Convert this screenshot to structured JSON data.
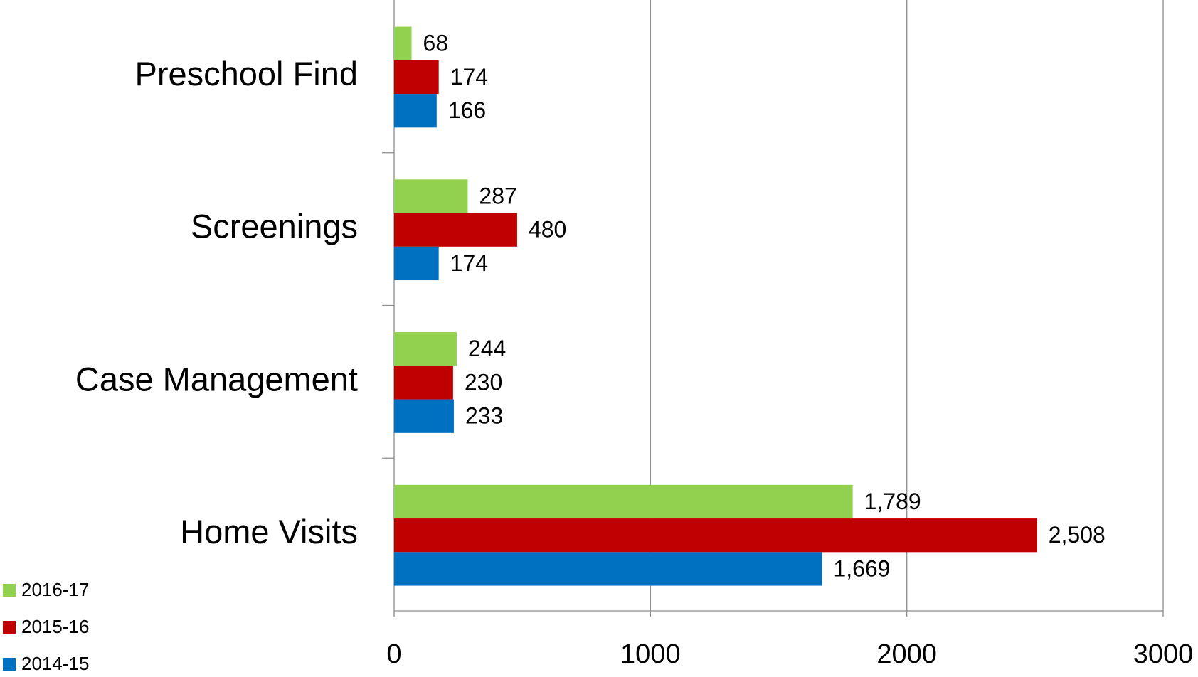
{
  "chart_data": {
    "type": "bar",
    "orientation": "horizontal",
    "categories": [
      "Preschool Find",
      "Screenings",
      "Case Management",
      "Home Visits"
    ],
    "series": [
      {
        "name": "2016-17",
        "color": "#92d050",
        "values": [
          68,
          287,
          244,
          1789
        ],
        "value_labels": [
          "68",
          "287",
          "244",
          "1,789"
        ]
      },
      {
        "name": "2015-16",
        "color": "#c00000",
        "values": [
          174,
          480,
          230,
          2508
        ],
        "value_labels": [
          "174",
          "480",
          "230",
          "2,508"
        ]
      },
      {
        "name": "2014-15",
        "color": "#0070c0",
        "values": [
          166,
          174,
          233,
          1669
        ],
        "value_labels": [
          "166",
          "174",
          "233",
          "1,669"
        ]
      }
    ],
    "xlim": [
      0,
      3000
    ],
    "xticks": [
      0,
      1000,
      2000,
      3000
    ],
    "grid": true,
    "legend": "bottom-left"
  }
}
